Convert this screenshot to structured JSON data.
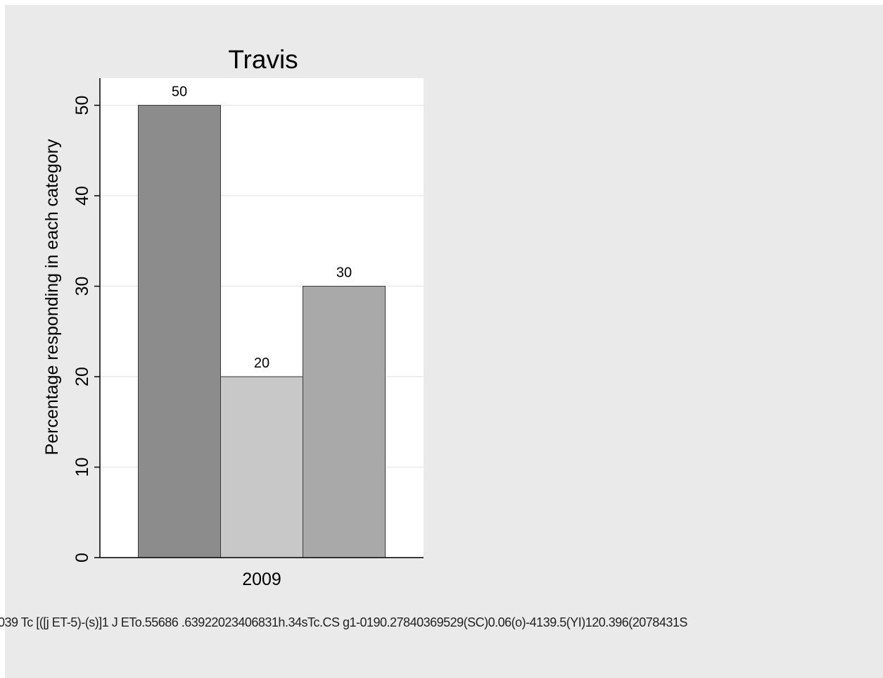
{
  "chart_data": {
    "type": "bar",
    "title": "Travis",
    "xlabel": "",
    "ylabel": "Percentage responding in each category",
    "categories": [
      "2009"
    ],
    "series": [
      {
        "values": [
          50
        ],
        "color": "#8c8c8c"
      },
      {
        "values": [
          20
        ],
        "color": "#c8c8c8"
      },
      {
        "values": [
          30
        ],
        "color": "#a9a9a9"
      }
    ],
    "value_labels": [
      "50",
      "20",
      "30"
    ],
    "ylim": [
      0,
      53
    ],
    "yticks": [
      0,
      10,
      20,
      30,
      40,
      50
    ],
    "grid": true,
    "legend_placement": "bottom",
    "legend_text": "039 Tc [([j ET-5)-(s)]1 J ETo.55686 .63922023406831h.34sTc.CS g1-0190.27840369529(SC)0.06(o)-4139.5(YI)120.396(2078431S"
  },
  "colors": {
    "background": "#eaeaea",
    "plot_area": "#ffffff",
    "grid": "#eaeaea",
    "axis": "#000000"
  }
}
